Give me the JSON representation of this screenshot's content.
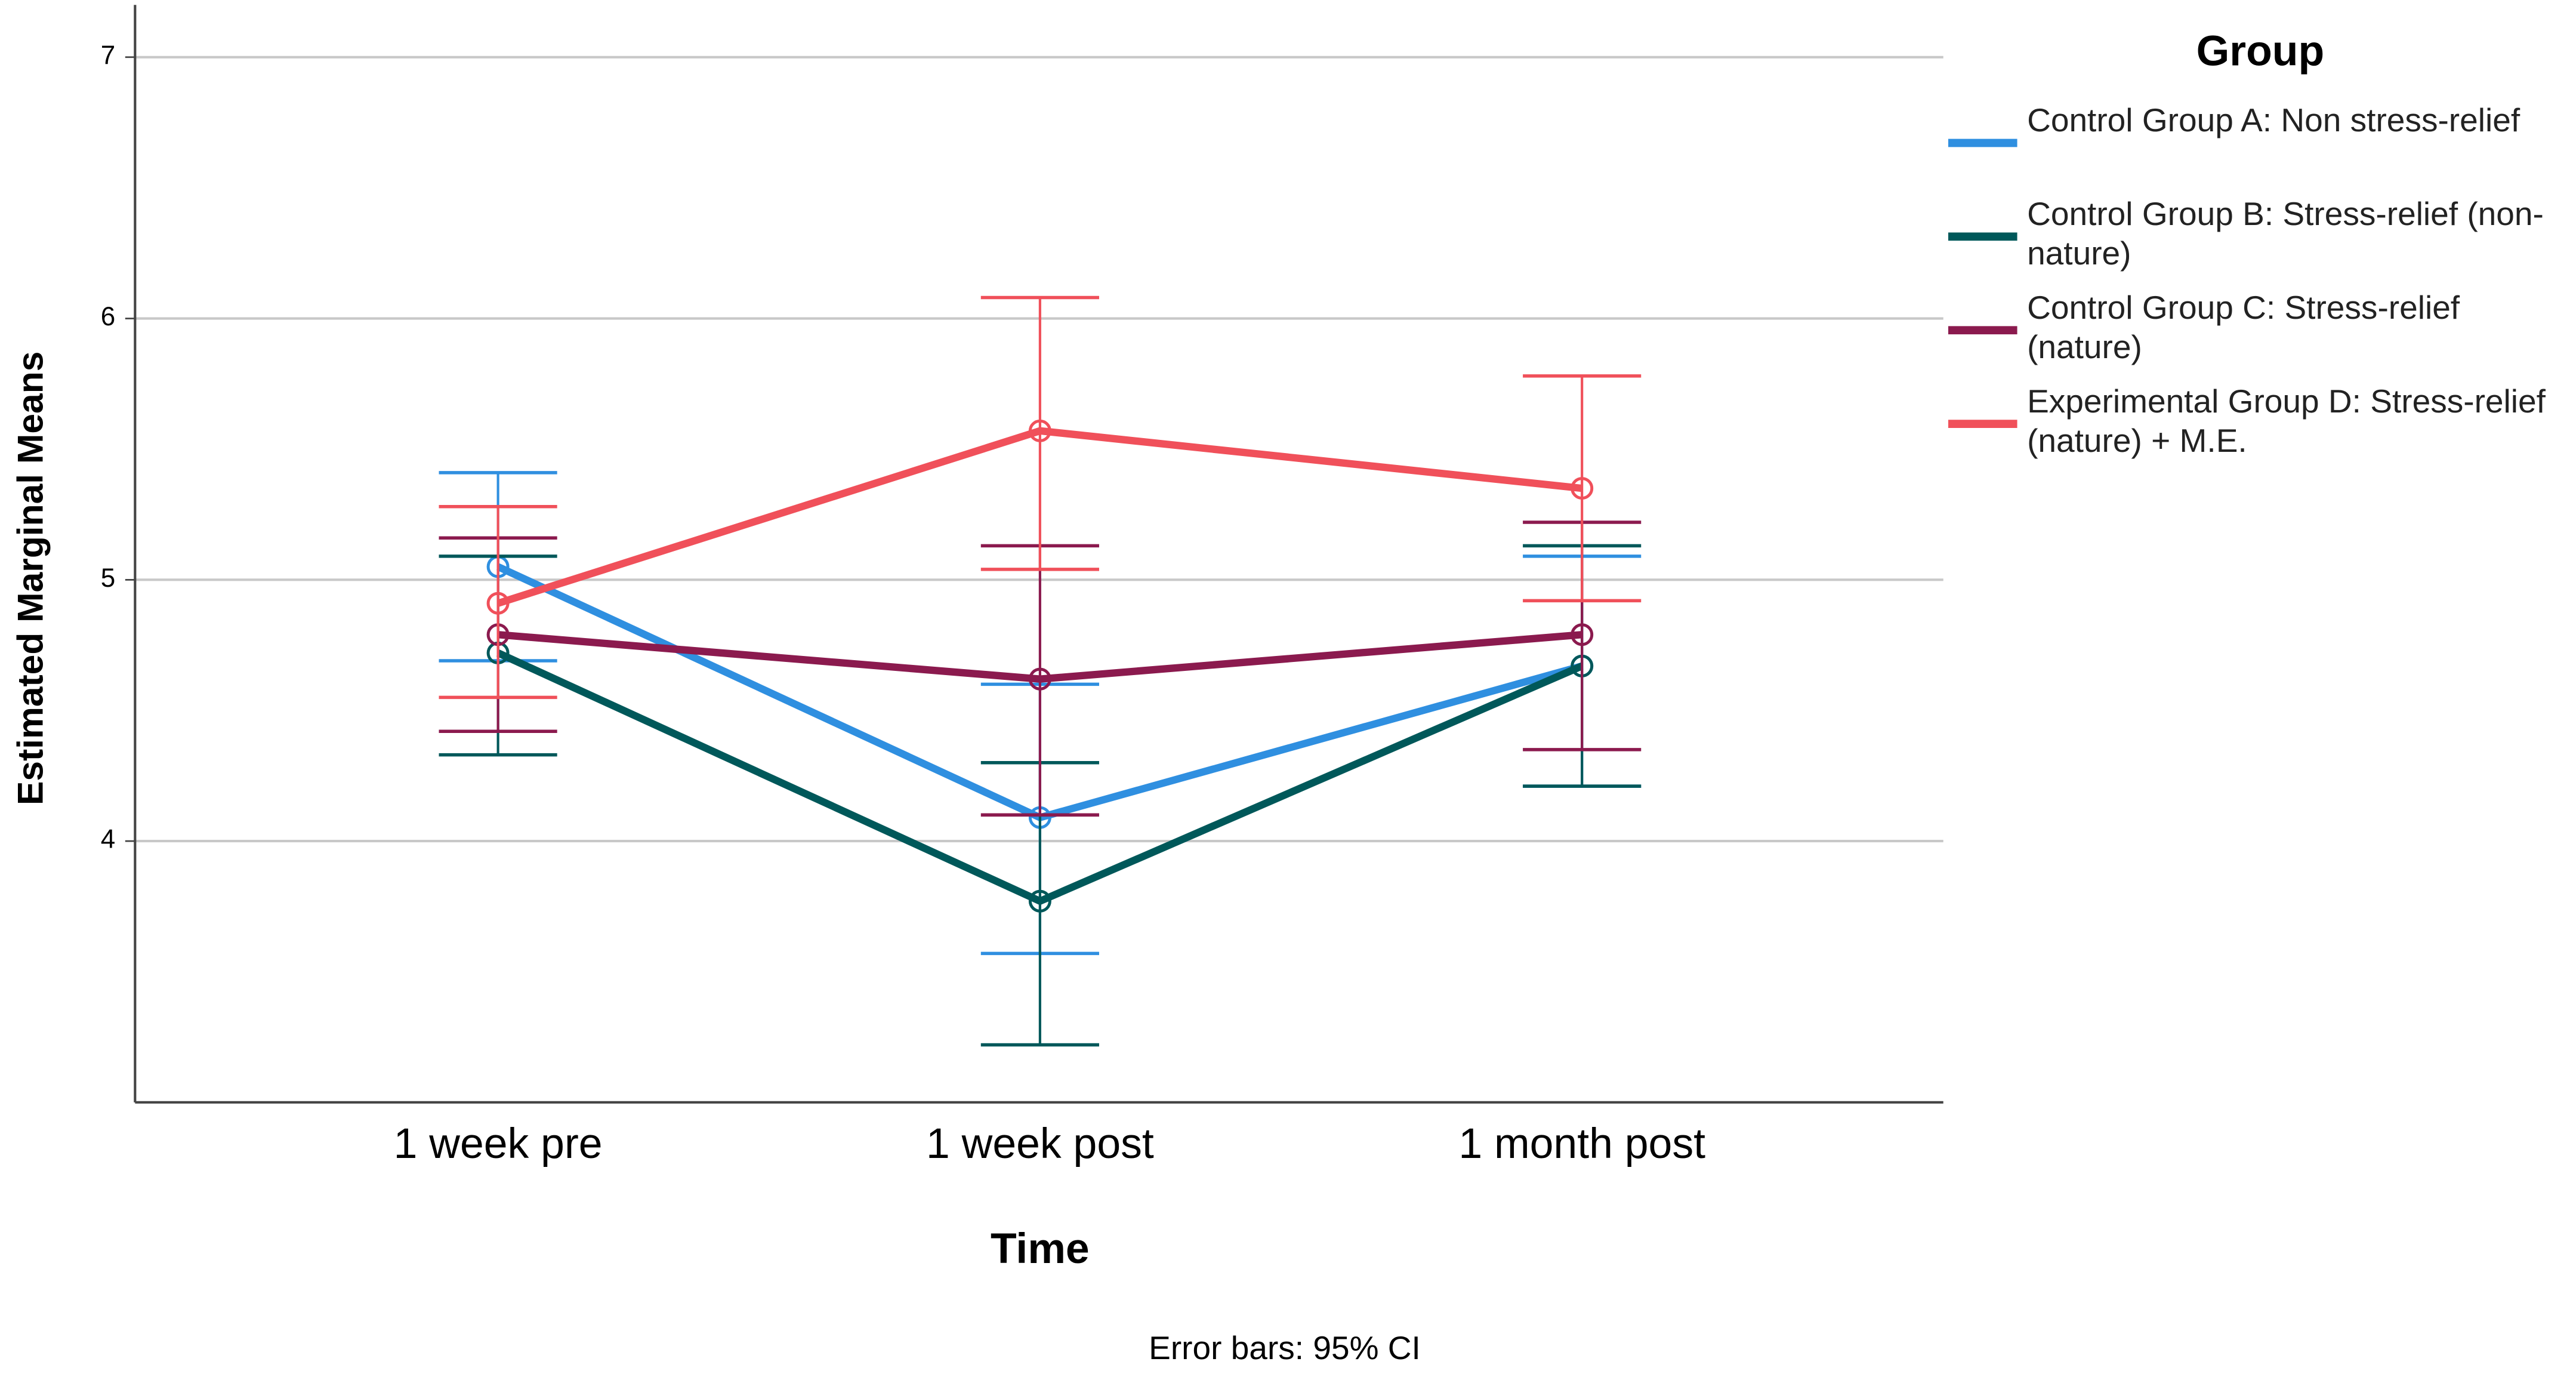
{
  "chart_data": {
    "type": "line",
    "xlabel": "Time",
    "ylabel": "Estimated Marginal Means",
    "legend_title": "Group",
    "note": "Error bars: 95% CI",
    "legend": "right",
    "grid": true,
    "categories": [
      "1 week pre",
      "1 week post",
      "1 month post"
    ],
    "ylim": [
      3.0,
      7.2
    ],
    "yticks": [
      4,
      5,
      6,
      7
    ],
    "series": [
      {
        "name": "Control Group A: Non stress-relief",
        "color": "#2f8fe0",
        "values": [
          5.05,
          4.09,
          4.67
        ],
        "ci_low": [
          4.69,
          3.57,
          4.21
        ],
        "ci_high": [
          5.41,
          4.6,
          5.09
        ]
      },
      {
        "name": "Control Group B: Stress-relief (non-nature)",
        "color": "#00585a",
        "values": [
          4.72,
          3.77,
          4.67
        ],
        "ci_low": [
          4.33,
          3.22,
          4.21
        ],
        "ci_high": [
          5.09,
          4.3,
          5.13
        ]
      },
      {
        "name": "Control Group C: Stress-relief (nature)",
        "color": "#8b1a4e",
        "values": [
          4.79,
          4.62,
          4.79
        ],
        "ci_low": [
          4.42,
          4.1,
          4.35
        ],
        "ci_high": [
          5.16,
          5.13,
          5.22
        ]
      },
      {
        "name": "Experimental Group D: Stress-relief (nature) + M.E.",
        "color": "#f0505a",
        "values": [
          4.91,
          5.57,
          5.35
        ],
        "ci_low": [
          4.55,
          5.04,
          4.92
        ],
        "ci_high": [
          5.28,
          6.08,
          5.78
        ]
      }
    ]
  }
}
